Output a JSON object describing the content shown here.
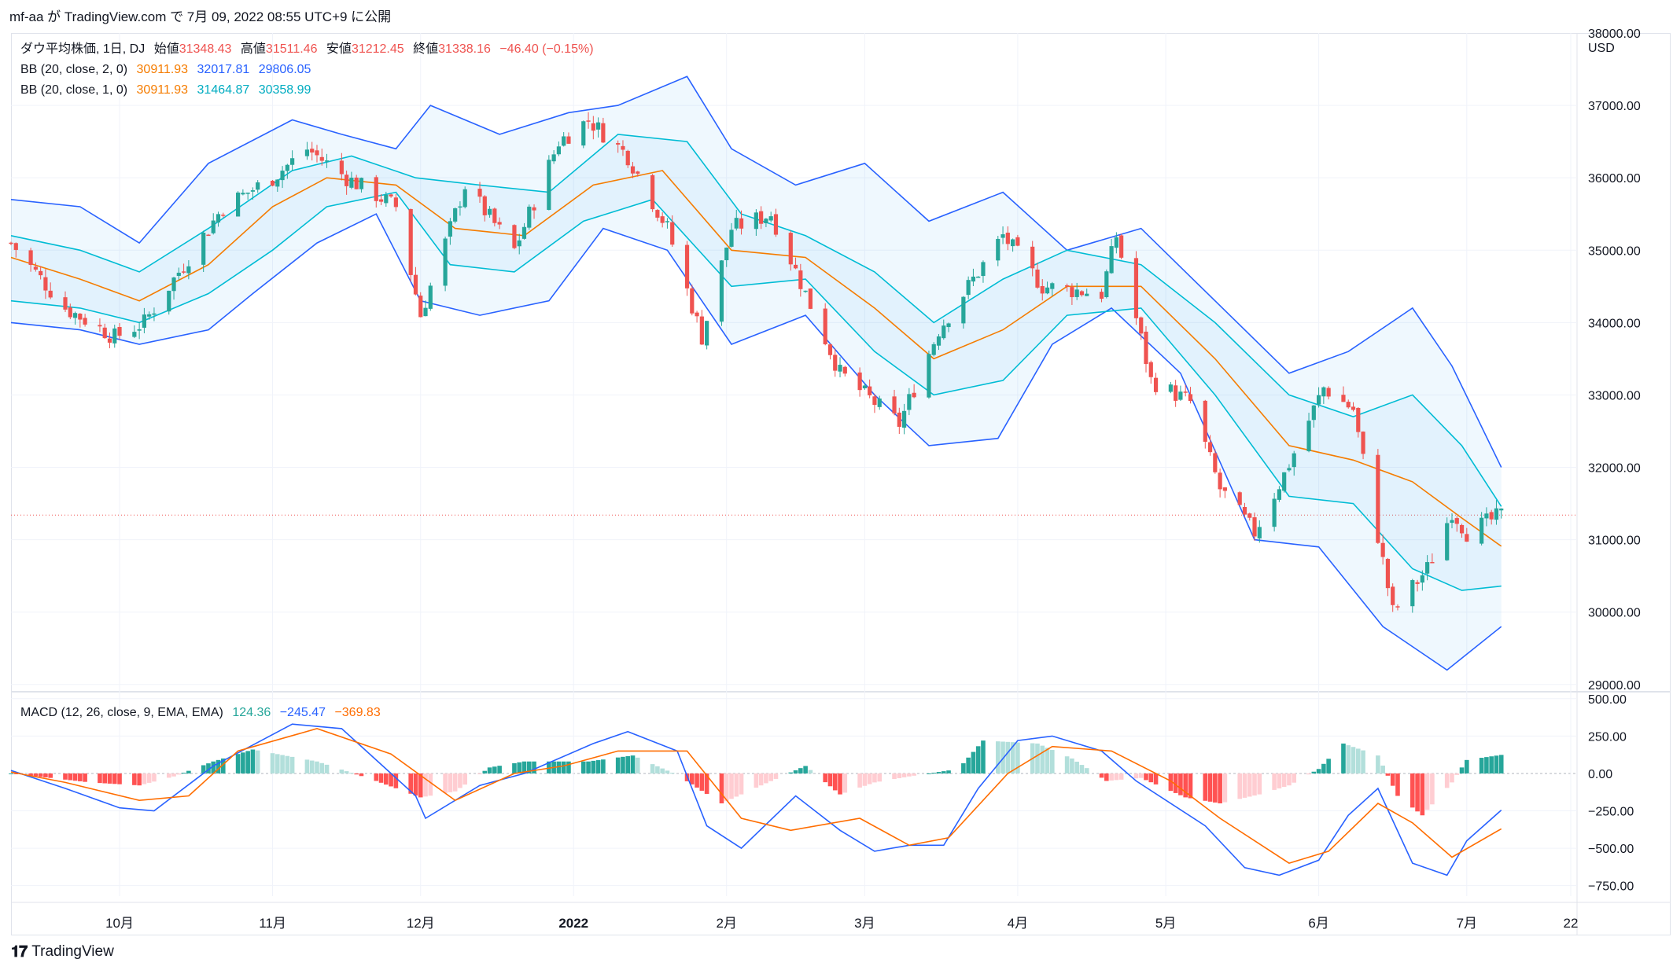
{
  "header": {
    "text": "mf-aa が TradingView.com で 7月 09, 2022 08:55 UTC+9 に公開"
  },
  "legend": {
    "main": {
      "symbol": "ダウ平均株価, 1日, DJ",
      "open_label": "始値",
      "open": "31348.43",
      "high_label": "高値",
      "high": "31511.46",
      "low_label": "安値",
      "low": "31212.45",
      "close_label": "終値",
      "close": "31338.16",
      "change": "−46.40 (−0.15%)"
    },
    "bb2": {
      "label": "BB (20, close, 2, 0)",
      "basis": "30911.93",
      "upper": "32017.81",
      "lower": "29806.05"
    },
    "bb1": {
      "label": "BB (20, close, 1, 0)",
      "basis": "30911.93",
      "upper": "31464.87",
      "lower": "30358.99"
    },
    "macd": {
      "label": "MACD (12, 26, close, 9, EMA, EMA)",
      "hist": "124.36",
      "macd": "−245.47",
      "signal": "−369.83"
    }
  },
  "colors": {
    "up": "#26a69a",
    "down": "#ef5350",
    "basis": "#f57c00",
    "outer": "#2962ff",
    "inner": "#00bcd4",
    "hist_up_strong": "#26a69a",
    "hist_up_weak": "#b2dfdb",
    "hist_down_strong": "#ff5252",
    "hist_down_weak": "#ffcdd2",
    "macd_line": "#2962ff",
    "signal_line": "#ff6d00"
  },
  "axes": {
    "currency": "USD",
    "price_ticks": [
      "38000.00",
      "37000.00",
      "36000.00",
      "35000.00",
      "34000.00",
      "33000.00",
      "32000.00",
      "31000.00",
      "30000.00",
      "29000.00"
    ],
    "macd_ticks": [
      "500.00",
      "250.00",
      "0.00",
      "−250.00",
      "−500.00",
      "−750.00"
    ],
    "time_labels": [
      "10月",
      "11月",
      "12月",
      "2022",
      "2月",
      "3月",
      "4月",
      "5月",
      "6月",
      "7月",
      "22"
    ]
  },
  "footer": {
    "brand": "TradingView"
  },
  "chart_data": {
    "type": "candlestick",
    "title": "ダウ平均株価, 1日, DJ",
    "ylim": [
      28900,
      38000
    ],
    "macd_ylim": [
      -820,
      520
    ],
    "x_start": "2021-09-09",
    "x_end": "2022-07-09",
    "price_path": [
      [
        "2021-09-09",
        35100
      ],
      [
        "2021-09-20",
        34200
      ],
      [
        "2021-09-30",
        33800
      ],
      [
        "2021-10-06",
        34000
      ],
      [
        "2021-10-15",
        34900
      ],
      [
        "2021-10-22",
        35600
      ],
      [
        "2021-11-01",
        36000
      ],
      [
        "2021-11-08",
        36400
      ],
      [
        "2021-11-16",
        36000
      ],
      [
        "2021-11-26",
        35600
      ],
      [
        "2021-12-01",
        34100
      ],
      [
        "2021-12-10",
        35900
      ],
      [
        "2021-12-20",
        35000
      ],
      [
        "2021-12-29",
        36500
      ],
      [
        "2022-01-04",
        36800
      ],
      [
        "2022-01-12",
        36300
      ],
      [
        "2022-01-20",
        35300
      ],
      [
        "2022-01-27",
        33800
      ],
      [
        "2022-02-02",
        35300
      ],
      [
        "2022-02-10",
        35500
      ],
      [
        "2022-02-17",
        34400
      ],
      [
        "2022-02-24",
        33300
      ],
      [
        "2022-03-08",
        32600
      ],
      [
        "2022-03-16",
        33900
      ],
      [
        "2022-03-29",
        35200
      ],
      [
        "2022-04-06",
        34500
      ],
      [
        "2022-04-18",
        34400
      ],
      [
        "2022-04-21",
        35200
      ],
      [
        "2022-04-28",
        33200
      ],
      [
        "2022-05-06",
        32900
      ],
      [
        "2022-05-12",
        31700
      ],
      [
        "2022-05-19",
        31100
      ],
      [
        "2022-05-25",
        31900
      ],
      [
        "2022-06-02",
        33100
      ],
      [
        "2022-06-08",
        32800
      ],
      [
        "2022-06-16",
        30000
      ],
      [
        "2022-06-23",
        30600
      ],
      [
        "2022-06-28",
        31400
      ],
      [
        "2022-07-01",
        31100
      ],
      [
        "2022-07-08",
        31340
      ]
    ],
    "bb2": {
      "upper": [
        [
          "2021-09-09",
          35700
        ],
        [
          "2021-09-23",
          35600
        ],
        [
          "2021-10-05",
          35100
        ],
        [
          "2021-10-19",
          36200
        ],
        [
          "2021-11-05",
          36800
        ],
        [
          "2021-11-15",
          36600
        ],
        [
          "2021-11-26",
          36400
        ],
        [
          "2021-12-03",
          37000
        ],
        [
          "2021-12-17",
          36600
        ],
        [
          "2021-12-31",
          36900
        ],
        [
          "2022-01-10",
          37000
        ],
        [
          "2022-01-24",
          37400
        ],
        [
          "2022-02-02",
          36400
        ],
        [
          "2022-02-15",
          35900
        ],
        [
          "2022-03-01",
          36200
        ],
        [
          "2022-03-14",
          35400
        ],
        [
          "2022-03-29",
          35800
        ],
        [
          "2022-04-11",
          35000
        ],
        [
          "2022-04-26",
          35300
        ],
        [
          "2022-05-11",
          34300
        ],
        [
          "2022-05-26",
          33300
        ],
        [
          "2022-06-07",
          33600
        ],
        [
          "2022-06-20",
          34200
        ],
        [
          "2022-06-28",
          33400
        ],
        [
          "2022-07-08",
          32000
        ]
      ],
      "lower": [
        [
          "2021-09-09",
          34000
        ],
        [
          "2021-09-23",
          33900
        ],
        [
          "2021-10-05",
          33700
        ],
        [
          "2021-10-19",
          33900
        ],
        [
          "2021-10-28",
          34400
        ],
        [
          "2021-11-10",
          35100
        ],
        [
          "2021-11-22",
          35500
        ],
        [
          "2021-12-01",
          34300
        ],
        [
          "2021-12-13",
          34100
        ],
        [
          "2021-12-27",
          34300
        ],
        [
          "2022-01-07",
          35300
        ],
        [
          "2022-01-20",
          35000
        ],
        [
          "2022-02-02",
          33700
        ],
        [
          "2022-02-17",
          34100
        ],
        [
          "2022-03-03",
          33000
        ],
        [
          "2022-03-14",
          32300
        ],
        [
          "2022-03-28",
          32400
        ],
        [
          "2022-04-08",
          33700
        ],
        [
          "2022-04-20",
          34200
        ],
        [
          "2022-05-04",
          33300
        ],
        [
          "2022-05-19",
          31000
        ],
        [
          "2022-06-01",
          30900
        ],
        [
          "2022-06-14",
          29800
        ],
        [
          "2022-06-27",
          29200
        ],
        [
          "2022-07-08",
          29800
        ]
      ]
    },
    "bb1": {
      "upper": [
        [
          "2021-09-09",
          35200
        ],
        [
          "2021-09-23",
          35000
        ],
        [
          "2021-10-05",
          34700
        ],
        [
          "2021-10-19",
          35300
        ],
        [
          "2021-11-05",
          36100
        ],
        [
          "2021-11-17",
          36300
        ],
        [
          "2021-11-30",
          36000
        ],
        [
          "2021-12-13",
          35900
        ],
        [
          "2021-12-27",
          35800
        ],
        [
          "2022-01-10",
          36600
        ],
        [
          "2022-01-24",
          36500
        ],
        [
          "2022-02-04",
          35500
        ],
        [
          "2022-02-17",
          35200
        ],
        [
          "2022-03-03",
          34700
        ],
        [
          "2022-03-15",
          34000
        ],
        [
          "2022-03-29",
          34600
        ],
        [
          "2022-04-11",
          35000
        ],
        [
          "2022-04-26",
          34800
        ],
        [
          "2022-05-11",
          34000
        ],
        [
          "2022-05-26",
          33000
        ],
        [
          "2022-06-08",
          32700
        ],
        [
          "2022-06-20",
          33000
        ],
        [
          "2022-06-30",
          32300
        ],
        [
          "2022-07-08",
          31460
        ]
      ],
      "lower": [
        [
          "2021-09-09",
          34300
        ],
        [
          "2021-09-23",
          34200
        ],
        [
          "2021-10-05",
          34000
        ],
        [
          "2021-10-19",
          34400
        ],
        [
          "2021-11-01",
          35000
        ],
        [
          "2021-11-12",
          35600
        ],
        [
          "2021-11-26",
          35800
        ],
        [
          "2021-12-07",
          34800
        ],
        [
          "2021-12-20",
          34700
        ],
        [
          "2022-01-03",
          35400
        ],
        [
          "2022-01-17",
          35700
        ],
        [
          "2022-02-02",
          34500
        ],
        [
          "2022-02-17",
          34600
        ],
        [
          "2022-03-03",
          33600
        ],
        [
          "2022-03-15",
          33000
        ],
        [
          "2022-03-29",
          33200
        ],
        [
          "2022-04-11",
          34100
        ],
        [
          "2022-04-26",
          34200
        ],
        [
          "2022-05-11",
          33000
        ],
        [
          "2022-05-26",
          31600
        ],
        [
          "2022-06-08",
          31500
        ],
        [
          "2022-06-20",
          30600
        ],
        [
          "2022-06-30",
          30300
        ],
        [
          "2022-07-08",
          30360
        ]
      ]
    },
    "basis": [
      [
        "2021-09-09",
        34900
      ],
      [
        "2021-09-23",
        34600
      ],
      [
        "2021-10-05",
        34300
      ],
      [
        "2021-10-19",
        34800
      ],
      [
        "2021-11-01",
        35600
      ],
      [
        "2021-11-12",
        36000
      ],
      [
        "2021-11-26",
        35900
      ],
      [
        "2021-12-08",
        35300
      ],
      [
        "2021-12-22",
        35200
      ],
      [
        "2022-01-05",
        35900
      ],
      [
        "2022-01-19",
        36100
      ],
      [
        "2022-02-02",
        35000
      ],
      [
        "2022-02-17",
        34900
      ],
      [
        "2022-03-03",
        34200
      ],
      [
        "2022-03-15",
        33500
      ],
      [
        "2022-03-29",
        33900
      ],
      [
        "2022-04-11",
        34500
      ],
      [
        "2022-04-26",
        34500
      ],
      [
        "2022-05-11",
        33500
      ],
      [
        "2022-05-26",
        32300
      ],
      [
        "2022-06-08",
        32100
      ],
      [
        "2022-06-20",
        31800
      ],
      [
        "2022-06-30",
        31300
      ],
      [
        "2022-07-08",
        30910
      ]
    ],
    "macd_line": [
      [
        "2021-09-09",
        20
      ],
      [
        "2021-09-20",
        -100
      ],
      [
        "2021-10-01",
        -230
      ],
      [
        "2021-10-08",
        -250
      ],
      [
        "2021-10-20",
        50
      ],
      [
        "2021-11-05",
        330
      ],
      [
        "2021-11-15",
        300
      ],
      [
        "2021-11-30",
        -150
      ],
      [
        "2021-12-02",
        -300
      ],
      [
        "2021-12-13",
        -80
      ],
      [
        "2021-12-22",
        0
      ],
      [
        "2022-01-05",
        200
      ],
      [
        "2022-01-12",
        280
      ],
      [
        "2022-01-22",
        150
      ],
      [
        "2022-01-28",
        -350
      ],
      [
        "2022-02-04",
        -500
      ],
      [
        "2022-02-15",
        -150
      ],
      [
        "2022-02-24",
        -380
      ],
      [
        "2022-03-03",
        -520
      ],
      [
        "2022-03-10",
        -480
      ],
      [
        "2022-03-17",
        -480
      ],
      [
        "2022-03-24",
        -100
      ],
      [
        "2022-04-01",
        220
      ],
      [
        "2022-04-08",
        250
      ],
      [
        "2022-04-18",
        150
      ],
      [
        "2022-04-25",
        -50
      ],
      [
        "2022-05-09",
        -350
      ],
      [
        "2022-05-17",
        -630
      ],
      [
        "2022-05-24",
        -680
      ],
      [
        "2022-06-01",
        -580
      ],
      [
        "2022-06-07",
        -280
      ],
      [
        "2022-06-13",
        -100
      ],
      [
        "2022-06-20",
        -600
      ],
      [
        "2022-06-27",
        -680
      ],
      [
        "2022-07-01",
        -450
      ],
      [
        "2022-07-08",
        -245
      ]
    ],
    "signal_line": [
      [
        "2021-09-09",
        10
      ],
      [
        "2021-09-20",
        -60
      ],
      [
        "2021-10-05",
        -180
      ],
      [
        "2021-10-15",
        -150
      ],
      [
        "2021-10-25",
        150
      ],
      [
        "2021-11-10",
        300
      ],
      [
        "2021-11-25",
        130
      ],
      [
        "2021-12-08",
        -180
      ],
      [
        "2021-12-20",
        0
      ],
      [
        "2021-12-30",
        50
      ],
      [
        "2022-01-10",
        150
      ],
      [
        "2022-01-24",
        150
      ],
      [
        "2022-02-04",
        -300
      ],
      [
        "2022-02-14",
        -380
      ],
      [
        "2022-02-28",
        -300
      ],
      [
        "2022-03-10",
        -480
      ],
      [
        "2022-03-18",
        -430
      ],
      [
        "2022-03-30",
        0
      ],
      [
        "2022-04-08",
        180
      ],
      [
        "2022-04-20",
        150
      ],
      [
        "2022-05-02",
        -50
      ],
      [
        "2022-05-12",
        -300
      ],
      [
        "2022-05-26",
        -600
      ],
      [
        "2022-06-03",
        -520
      ],
      [
        "2022-06-13",
        -200
      ],
      [
        "2022-06-20",
        -330
      ],
      [
        "2022-06-28",
        -560
      ],
      [
        "2022-07-08",
        -370
      ]
    ],
    "histogram": [
      [
        "2021-09-09",
        0
      ],
      [
        "2021-09-25",
        -60
      ],
      [
        "2021-10-05",
        -80
      ],
      [
        "2021-10-12",
        -20
      ],
      [
        "2021-10-20",
        80
      ],
      [
        "2021-10-28",
        160
      ],
      [
        "2021-11-10",
        80
      ],
      [
        "2021-11-22",
        -50
      ],
      [
        "2021-12-01",
        -160
      ],
      [
        "2021-12-08",
        -120
      ],
      [
        "2021-12-15",
        40
      ],
      [
        "2021-12-22",
        80
      ],
      [
        "2022-01-04",
        80
      ],
      [
        "2022-01-13",
        120
      ],
      [
        "2022-01-22",
        -10
      ],
      [
        "2022-01-31",
        -200
      ],
      [
        "2022-02-08",
        -80
      ],
      [
        "2022-02-17",
        50
      ],
      [
        "2022-02-24",
        -140
      ],
      [
        "2022-03-03",
        -60
      ],
      [
        "2022-03-10",
        -20
      ],
      [
        "2022-03-20",
        30
      ],
      [
        "2022-03-25",
        220
      ],
      [
        "2022-04-05",
        200
      ],
      [
        "2022-04-12",
        100
      ],
      [
        "2022-04-19",
        -50
      ],
      [
        "2022-04-26",
        -30
      ],
      [
        "2022-05-05",
        -160
      ],
      [
        "2022-05-12",
        -200
      ],
      [
        "2022-05-20",
        -140
      ],
      [
        "2022-05-26",
        -80
      ],
      [
        "2022-06-01",
        30
      ],
      [
        "2022-06-06",
        200
      ],
      [
        "2022-06-13",
        120
      ],
      [
        "2022-06-17",
        -150
      ],
      [
        "2022-06-22",
        -280
      ],
      [
        "2022-06-28",
        -60
      ],
      [
        "2022-07-01",
        90
      ],
      [
        "2022-07-08",
        124
      ]
    ]
  }
}
